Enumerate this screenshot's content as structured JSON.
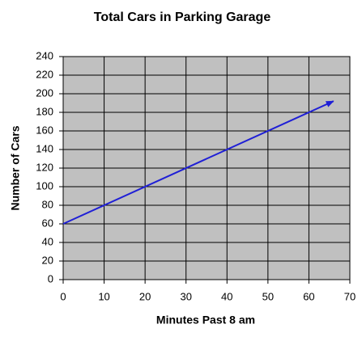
{
  "chart_data": {
    "type": "line",
    "title": "Total Cars in Parking Garage",
    "x_label": "Minutes Past 8 am",
    "y_label": "Number of Cars",
    "x": [
      0,
      66
    ],
    "series": [
      {
        "color": "#1f1fd6",
        "values": [
          60,
          192
        ]
      }
    ],
    "xlim": [
      0,
      70
    ],
    "xticks": [
      0,
      10,
      20,
      30,
      40,
      50,
      60,
      70
    ],
    "ylim": [
      0,
      240
    ],
    "yticks": [
      0,
      20,
      40,
      60,
      80,
      100,
      120,
      140,
      160,
      180,
      200,
      220,
      240
    ],
    "grid": true,
    "arrow": true
  }
}
